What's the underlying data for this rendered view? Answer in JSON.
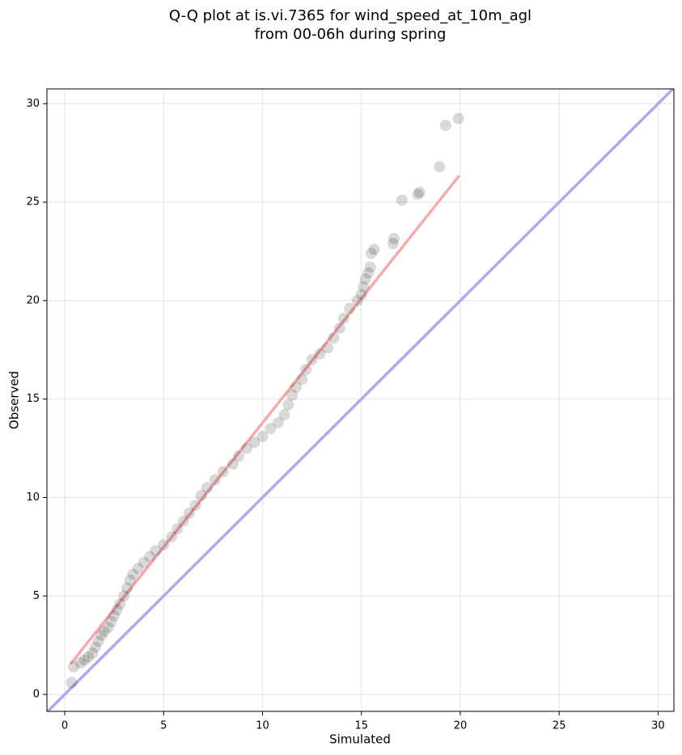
{
  "chart_data": {
    "type": "scatter",
    "title": [
      "Q-Q plot at is.vi.7365 for wind_speed_at_10m_agl",
      "from 00-06h during spring"
    ],
    "xlabel": "Simulated",
    "ylabel": "Observed",
    "xlim": [
      -0.9,
      30.8
    ],
    "ylim": [
      -0.86,
      30.75
    ],
    "xticks": [
      0,
      5,
      10,
      15,
      20,
      25,
      30
    ],
    "yticks": [
      0,
      5,
      10,
      15,
      20,
      25,
      30
    ],
    "grid": true,
    "color": "#000000",
    "x": [
      0.35,
      0.45,
      0.8,
      1.0,
      1.2,
      1.4,
      1.55,
      1.7,
      1.85,
      2.0,
      2.2,
      2.35,
      2.5,
      2.65,
      2.8,
      3.0,
      3.15,
      3.3,
      3.45,
      3.7,
      4.0,
      4.3,
      4.6,
      5.0,
      5.4,
      5.7,
      6.0,
      6.3,
      6.6,
      6.9,
      7.2,
      7.6,
      8.0,
      8.5,
      8.8,
      9.2,
      9.6,
      10.0,
      10.4,
      10.8,
      11.1,
      11.3,
      11.5,
      11.7,
      12.0,
      12.2,
      12.5,
      12.9,
      13.3,
      13.6,
      13.9,
      14.1,
      14.4,
      14.8,
      15.0,
      15.1,
      15.2,
      15.35,
      15.45,
      15.5,
      15.65,
      16.6,
      16.65,
      17.05,
      17.85,
      17.95,
      18.95,
      19.25,
      19.9
    ],
    "values": [
      0.6,
      1.4,
      1.6,
      1.75,
      1.9,
      2.1,
      2.4,
      2.7,
      3.0,
      3.2,
      3.4,
      3.7,
      4.0,
      4.3,
      4.6,
      5.0,
      5.4,
      5.8,
      6.1,
      6.4,
      6.7,
      7.0,
      7.3,
      7.6,
      8.0,
      8.4,
      8.8,
      9.2,
      9.6,
      10.1,
      10.5,
      10.9,
      11.3,
      11.7,
      12.1,
      12.5,
      12.8,
      13.1,
      13.5,
      13.8,
      14.2,
      14.7,
      15.2,
      15.6,
      16.0,
      16.5,
      17.0,
      17.3,
      17.6,
      18.1,
      18.6,
      19.1,
      19.6,
      20.0,
      20.3,
      20.7,
      21.1,
      21.4,
      21.7,
      22.4,
      22.6,
      22.9,
      23.15,
      25.1,
      25.4,
      25.5,
      26.8,
      28.9,
      29.25
    ],
    "lines": [
      {
        "color": "#aaaaf5",
        "x": [
          -0.9,
          30.8
        ],
        "y": [
          -0.9,
          30.8
        ]
      },
      {
        "color": "#f8aaaa",
        "x": [
          0.3,
          19.95
        ],
        "y": [
          1.55,
          26.35
        ]
      }
    ]
  }
}
